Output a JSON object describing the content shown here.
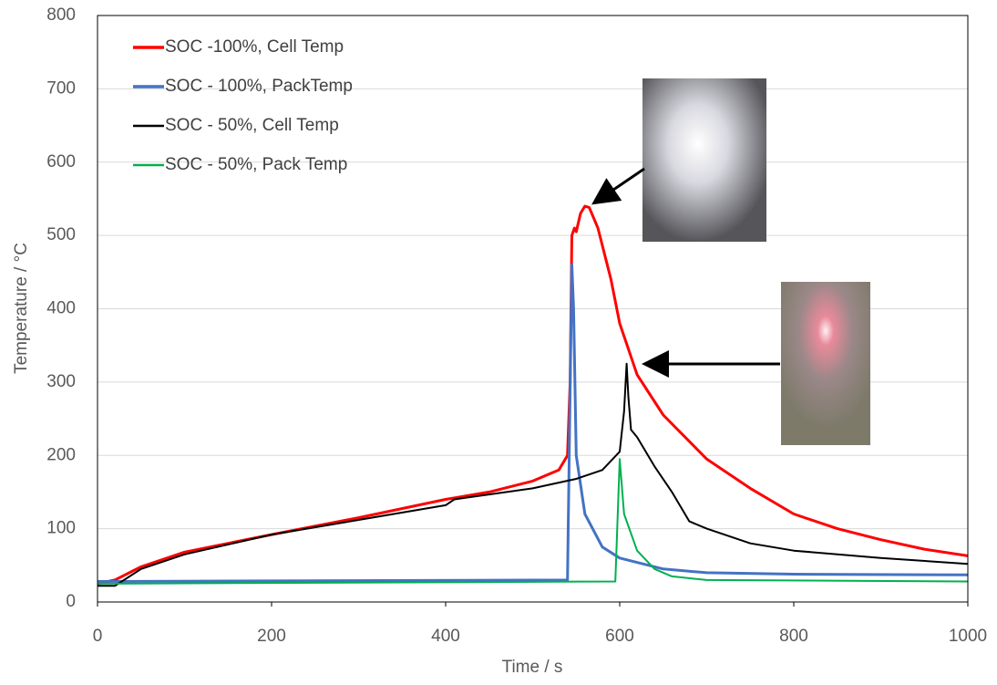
{
  "chart_data": {
    "type": "line",
    "x_label": "Time / s",
    "y_label": "Temperature / °C",
    "xlim": [
      0,
      1000
    ],
    "xticks": [
      0,
      200,
      400,
      600,
      800,
      1000
    ],
    "ylim": [
      0,
      800
    ],
    "yticks": [
      0,
      100,
      200,
      300,
      400,
      500,
      600,
      700,
      800
    ],
    "grid": true,
    "legend": "upper left",
    "series": [
      {
        "name": "SOC -100%, Cell Temp",
        "color": "#ff0000",
        "x": [
          0,
          20,
          50,
          100,
          200,
          300,
          400,
          450,
          500,
          530,
          540,
          543,
          545,
          548,
          550,
          555,
          560,
          565,
          575,
          590,
          600,
          620,
          650,
          700,
          750,
          800,
          850,
          900,
          950,
          1000
        ],
        "values": [
          25,
          30,
          48,
          68,
          92,
          115,
          140,
          150,
          165,
          180,
          200,
          300,
          500,
          510,
          505,
          530,
          540,
          538,
          510,
          440,
          380,
          310,
          255,
          195,
          155,
          120,
          100,
          85,
          72,
          63
        ]
      },
      {
        "name": "SOC - 100%, PackTemp",
        "color": "#4472c4",
        "x": [
          0,
          540,
          545,
          547,
          550,
          560,
          580,
          600,
          650,
          700,
          800,
          1000
        ],
        "values": [
          28,
          30,
          460,
          400,
          200,
          120,
          75,
          60,
          45,
          40,
          38,
          37
        ]
      },
      {
        "name": "SOC - 50%, Cell Temp",
        "color": "#000000",
        "x": [
          0,
          20,
          50,
          100,
          200,
          300,
          400,
          410,
          500,
          550,
          580,
          600,
          605,
          608,
          610,
          613,
          620,
          640,
          660,
          680,
          700,
          750,
          800,
          900,
          1000
        ],
        "values": [
          22,
          22,
          45,
          65,
          92,
          112,
          132,
          140,
          155,
          168,
          180,
          205,
          260,
          325,
          280,
          235,
          225,
          185,
          150,
          110,
          100,
          80,
          70,
          60,
          52
        ]
      },
      {
        "name": "SOC - 50%, Pack Temp",
        "color": "#00b050",
        "x": [
          0,
          595,
          600,
          605,
          620,
          640,
          660,
          700,
          1000
        ],
        "values": [
          25,
          28,
          195,
          120,
          70,
          45,
          35,
          30,
          28
        ]
      }
    ]
  }
}
